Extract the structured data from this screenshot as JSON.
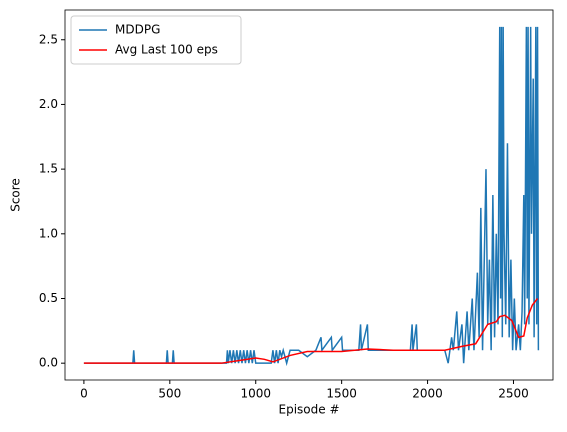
{
  "chart_data": {
    "type": "line",
    "xlabel": "Episode #",
    "ylabel": "Score",
    "xlim": [
      -110,
      2730
    ],
    "ylim": [
      -0.13,
      2.73
    ],
    "xticks": [
      0,
      500,
      1000,
      1500,
      2000,
      2500
    ],
    "yticks": [
      {
        "value": 0,
        "label": "0.0"
      },
      0.5,
      {
        "value": 1,
        "label": "1.0"
      },
      1.5,
      {
        "value": 2,
        "label": "2.0"
      },
      2.5
    ],
    "legend": "upper left",
    "series": [
      {
        "name": "MDDPG",
        "color": "#1f77b4",
        "x": [
          0,
          285,
          290,
          295,
          480,
          485,
          490,
          515,
          520,
          525,
          830,
          835,
          840,
          850,
          860,
          870,
          880,
          890,
          900,
          910,
          920,
          930,
          940,
          950,
          960,
          970,
          980,
          990,
          1000,
          1090,
          1100,
          1110,
          1120,
          1130,
          1140,
          1150,
          1160,
          1180,
          1200,
          1250,
          1300,
          1350,
          1380,
          1385,
          1440,
          1445,
          1500,
          1505,
          1600,
          1610,
          1615,
          1650,
          1655,
          1700,
          1900,
          1910,
          1915,
          1935,
          1940,
          2100,
          2120,
          2140,
          2150,
          2170,
          2180,
          2200,
          2210,
          2230,
          2240,
          2260,
          2270,
          2290,
          2300,
          2310,
          2320,
          2340,
          2350,
          2360,
          2370,
          2380,
          2390,
          2400,
          2410,
          2420,
          2425,
          2430,
          2435,
          2440,
          2445,
          2455,
          2465,
          2475,
          2485,
          2495,
          2505,
          2515,
          2530,
          2540,
          2550,
          2560,
          2565,
          2575,
          2580,
          2585,
          2590,
          2600,
          2605,
          2615,
          2620,
          2630,
          2635,
          2640,
          2645
        ],
        "values": [
          0,
          0,
          0.1,
          0,
          0,
          0.1,
          0,
          0,
          0.1,
          0,
          0,
          0.1,
          0,
          0.1,
          0,
          0.1,
          0,
          0.1,
          0,
          0.1,
          0,
          0.1,
          0,
          0.1,
          0,
          0.1,
          0,
          0.1,
          0,
          0,
          0.1,
          0,
          0.1,
          0,
          0.1,
          0.05,
          0.1,
          0,
          0.1,
          0.1,
          0.05,
          0.1,
          0.2,
          0.1,
          0.2,
          0.1,
          0.2,
          0.1,
          0.1,
          0.3,
          0.1,
          0.3,
          0.1,
          0.1,
          0.1,
          0.3,
          0.1,
          0.3,
          0.1,
          0.1,
          0,
          0.2,
          0.1,
          0.4,
          0.1,
          0.3,
          0,
          0.4,
          0.1,
          0.5,
          0.1,
          0.7,
          0.2,
          1.2,
          0.1,
          1.5,
          0.3,
          0.8,
          0.1,
          1.3,
          0.2,
          1.0,
          0.3,
          2.6,
          0.5,
          2.6,
          0.2,
          2.6,
          1.0,
          0.3,
          1.7,
          0.2,
          0.8,
          0.1,
          0.5,
          0.1,
          0.3,
          0.1,
          0.4,
          1.3,
          0.3,
          2.6,
          0.5,
          2.6,
          0.3,
          2.6,
          1.0,
          2.2,
          0.2,
          2.6,
          0.3,
          2.6,
          0.1
        ]
      },
      {
        "name": "Avg Last 100 eps",
        "color": "#ff0000",
        "x": [
          0,
          800,
          900,
          1000,
          1050,
          1100,
          1200,
          1300,
          1500,
          1650,
          1800,
          2100,
          2200,
          2280,
          2350,
          2400,
          2420,
          2450,
          2490,
          2530,
          2560,
          2580,
          2610,
          2640
        ],
        "values": [
          0,
          0,
          0.02,
          0.04,
          0.03,
          0.01,
          0.06,
          0.09,
          0.09,
          0.11,
          0.1,
          0.1,
          0.13,
          0.15,
          0.3,
          0.32,
          0.36,
          0.37,
          0.33,
          0.2,
          0.21,
          0.35,
          0.45,
          0.5
        ]
      }
    ]
  }
}
